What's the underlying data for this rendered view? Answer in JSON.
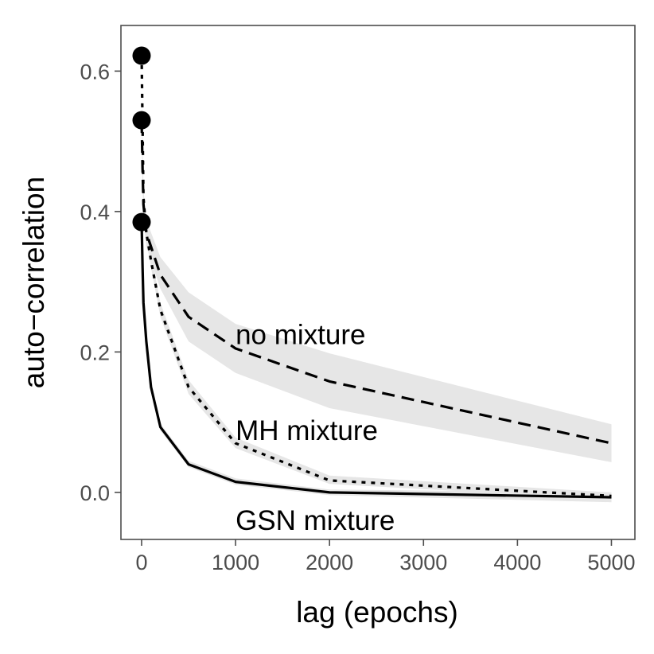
{
  "chart_data": {
    "type": "line",
    "title": "",
    "xlabel": "lag (epochs)",
    "ylabel": "auto−correlation",
    "xlim": [
      -220,
      5250
    ],
    "ylim": [
      -0.067,
      0.665
    ],
    "xticks": [
      0,
      1000,
      2000,
      3000,
      4000,
      5000
    ],
    "xtick_labels": [
      "0",
      "1000",
      "2000",
      "3000",
      "4000",
      "5000"
    ],
    "yticks": [
      0.0,
      0.2,
      0.4,
      0.6
    ],
    "ytick_labels": [
      "0.0",
      "0.2",
      "0.4",
      "0.6"
    ],
    "grid": false,
    "legend": "none",
    "series": [
      {
        "name": "no mixture",
        "linestyle": "dashed",
        "x": [
          0,
          10,
          20,
          50,
          100,
          200,
          500,
          1000,
          2000,
          5000
        ],
        "y": [
          0.53,
          0.46,
          0.41,
          0.37,
          0.35,
          0.31,
          0.25,
          0.205,
          0.158,
          0.07
        ],
        "band_lower": [
          0.53,
          0.44,
          0.39,
          0.35,
          0.33,
          0.29,
          0.215,
          0.17,
          0.12,
          0.043
        ],
        "band_upper": [
          0.53,
          0.48,
          0.43,
          0.39,
          0.37,
          0.335,
          0.285,
          0.24,
          0.198,
          0.097
        ]
      },
      {
        "name": "MH mixture",
        "linestyle": "dotted",
        "x": [
          0,
          10,
          20,
          50,
          100,
          200,
          500,
          1000,
          2000,
          5000
        ],
        "y": [
          0.622,
          0.52,
          0.42,
          0.37,
          0.33,
          0.26,
          0.15,
          0.07,
          0.017,
          -0.005
        ],
        "band_lower": [
          0.622,
          0.51,
          0.41,
          0.36,
          0.32,
          0.25,
          0.14,
          0.063,
          0.012,
          -0.01
        ],
        "band_upper": [
          0.622,
          0.53,
          0.43,
          0.38,
          0.34,
          0.27,
          0.16,
          0.078,
          0.024,
          0.0
        ]
      },
      {
        "name": "GSN mixture",
        "linestyle": "solid",
        "x": [
          0,
          10,
          20,
          50,
          100,
          200,
          500,
          1000,
          2000,
          5000
        ],
        "y": [
          0.385,
          0.32,
          0.27,
          0.215,
          0.15,
          0.093,
          0.04,
          0.015,
          0.0,
          -0.007
        ],
        "band_lower": [
          0.385,
          0.315,
          0.265,
          0.21,
          0.145,
          0.088,
          0.036,
          0.011,
          -0.004,
          -0.014
        ],
        "band_upper": [
          0.385,
          0.325,
          0.275,
          0.22,
          0.155,
          0.098,
          0.045,
          0.02,
          0.004,
          0.0
        ]
      }
    ],
    "points": [
      {
        "x": 0,
        "y": 0.622
      },
      {
        "x": 0,
        "y": 0.53
      },
      {
        "x": 0,
        "y": 0.385
      }
    ],
    "annotations": [
      {
        "text": "no mixture",
        "x": 1000,
        "y": 0.225
      },
      {
        "text": "MH mixture",
        "x": 1000,
        "y": 0.088
      },
      {
        "text": "GSN mixture",
        "x": 1000,
        "y": -0.04
      }
    ],
    "colors": {
      "line": "#000000",
      "band": "#e6e6e6",
      "panel_border": "#4d4d4d",
      "tick_text": "#4d4d4d",
      "background": "#ffffff"
    }
  }
}
